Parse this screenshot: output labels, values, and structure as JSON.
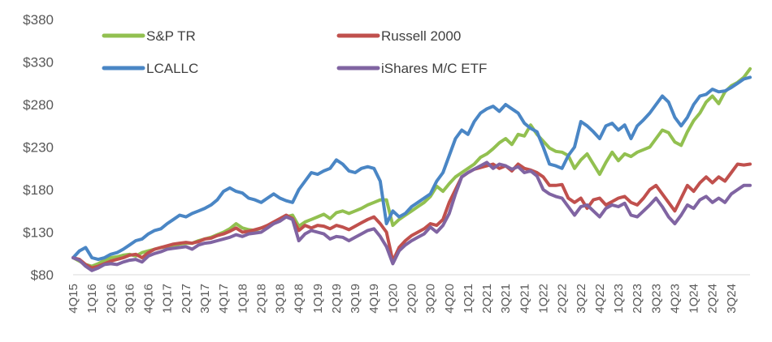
{
  "chart_data": {
    "type": "line",
    "title": "",
    "xlabel": "",
    "ylabel": "",
    "ylim": [
      80,
      380
    ],
    "yticks": [
      80,
      130,
      180,
      230,
      280,
      330,
      380
    ],
    "ytick_labels": [
      "$80",
      "$130",
      "$180",
      "$230",
      "$280",
      "$330",
      "$380"
    ],
    "grid": false,
    "legend_position": "top",
    "quarter_labels": [
      "4Q15",
      "1Q16",
      "2Q16",
      "3Q16",
      "4Q16",
      "1Q17",
      "2Q17",
      "3Q17",
      "4Q17",
      "1Q18",
      "2Q18",
      "3Q18",
      "4Q18",
      "1Q19",
      "2Q19",
      "3Q19",
      "4Q19",
      "1Q20",
      "2Q20",
      "3Q20",
      "4Q20",
      "1Q21",
      "2Q21",
      "3Q21",
      "4Q21",
      "1Q22",
      "2Q22",
      "3Q22",
      "4Q22",
      "1Q23",
      "2Q23",
      "3Q23",
      "4Q23",
      "1Q24",
      "2Q24",
      "3Q24"
    ],
    "x_points_per_quarter": 3,
    "series": [
      {
        "name": "S&P TR",
        "color": "#92C050",
        "values": [
          100,
          96,
          92,
          90,
          93,
          97,
          100,
          101,
          103,
          104,
          102,
          106,
          108,
          110,
          112,
          113,
          114,
          116,
          117,
          117,
          120,
          122,
          124,
          127,
          130,
          134,
          140,
          135,
          133,
          132,
          135,
          137,
          140,
          145,
          148,
          150,
          137,
          142,
          145,
          148,
          151,
          146,
          153,
          155,
          152,
          155,
          158,
          162,
          165,
          168,
          168,
          138,
          145,
          150,
          155,
          160,
          165,
          172,
          184,
          178,
          187,
          195,
          200,
          205,
          210,
          218,
          222,
          228,
          235,
          240,
          233,
          245,
          243,
          256,
          245,
          237,
          229,
          225,
          224,
          220,
          205,
          215,
          222,
          210,
          198,
          212,
          224,
          214,
          222,
          219,
          224,
          227,
          230,
          240,
          250,
          247,
          236,
          232,
          248,
          261,
          270,
          283,
          290,
          281,
          295,
          302,
          306,
          312,
          322
        ]
      },
      {
        "name": "Russell 2000",
        "color": "#C0504D",
        "values": [
          100,
          98,
          92,
          88,
          90,
          93,
          96,
          98,
          100,
          103,
          104,
          100,
          106,
          110,
          112,
          114,
          116,
          117,
          118,
          117,
          119,
          122,
          123,
          126,
          128,
          131,
          135,
          130,
          131,
          133,
          135,
          138,
          142,
          146,
          150,
          146,
          132,
          138,
          135,
          138,
          137,
          134,
          138,
          136,
          133,
          137,
          141,
          145,
          148,
          140,
          130,
          96,
          112,
          120,
          126,
          130,
          134,
          140,
          138,
          145,
          165,
          180,
          195,
          200,
          204,
          206,
          208,
          210,
          205,
          208,
          202,
          210,
          205,
          203,
          200,
          195,
          185,
          185,
          186,
          170,
          165,
          170,
          158,
          168,
          170,
          162,
          166,
          170,
          172,
          165,
          162,
          170,
          180,
          185,
          175,
          165,
          155,
          170,
          185,
          178,
          188,
          195,
          188,
          195,
          190,
          200,
          210,
          209,
          210
        ]
      },
      {
        "name": "LCALLC",
        "color": "#4A86C5",
        "values": [
          100,
          108,
          112,
          100,
          98,
          100,
          104,
          106,
          110,
          115,
          120,
          122,
          128,
          132,
          134,
          140,
          145,
          150,
          148,
          152,
          155,
          158,
          162,
          168,
          178,
          182,
          178,
          176,
          170,
          168,
          165,
          170,
          175,
          170,
          167,
          165,
          180,
          190,
          200,
          198,
          202,
          205,
          215,
          210,
          202,
          200,
          205,
          207,
          205,
          190,
          140,
          155,
          148,
          152,
          160,
          165,
          170,
          175,
          190,
          200,
          220,
          240,
          250,
          245,
          260,
          270,
          275,
          278,
          272,
          280,
          275,
          270,
          258,
          252,
          248,
          230,
          210,
          208,
          205,
          220,
          230,
          260,
          255,
          248,
          240,
          255,
          258,
          250,
          256,
          240,
          255,
          262,
          270,
          280,
          290,
          283,
          265,
          255,
          265,
          280,
          290,
          292,
          298,
          295,
          296,
          300,
          305,
          310,
          312
        ]
      },
      {
        "name": "iShares M/C ETF",
        "color": "#8064A2",
        "values": [
          100,
          97,
          90,
          85,
          88,
          92,
          93,
          92,
          95,
          97,
          98,
          95,
          102,
          105,
          107,
          110,
          111,
          112,
          113,
          110,
          115,
          117,
          118,
          120,
          122,
          124,
          127,
          125,
          128,
          129,
          130,
          135,
          140,
          143,
          148,
          145,
          120,
          128,
          132,
          130,
          128,
          122,
          125,
          124,
          120,
          124,
          128,
          132,
          134,
          125,
          113,
          93,
          108,
          115,
          120,
          124,
          128,
          136,
          130,
          138,
          152,
          175,
          195,
          200,
          204,
          208,
          212,
          205,
          210,
          208,
          204,
          207,
          200,
          202,
          196,
          180,
          175,
          172,
          170,
          160,
          150,
          160,
          162,
          155,
          148,
          158,
          162,
          160,
          164,
          150,
          148,
          155,
          162,
          170,
          160,
          148,
          140,
          150,
          162,
          158,
          168,
          172,
          165,
          170,
          165,
          175,
          180,
          185,
          185
        ]
      }
    ]
  }
}
